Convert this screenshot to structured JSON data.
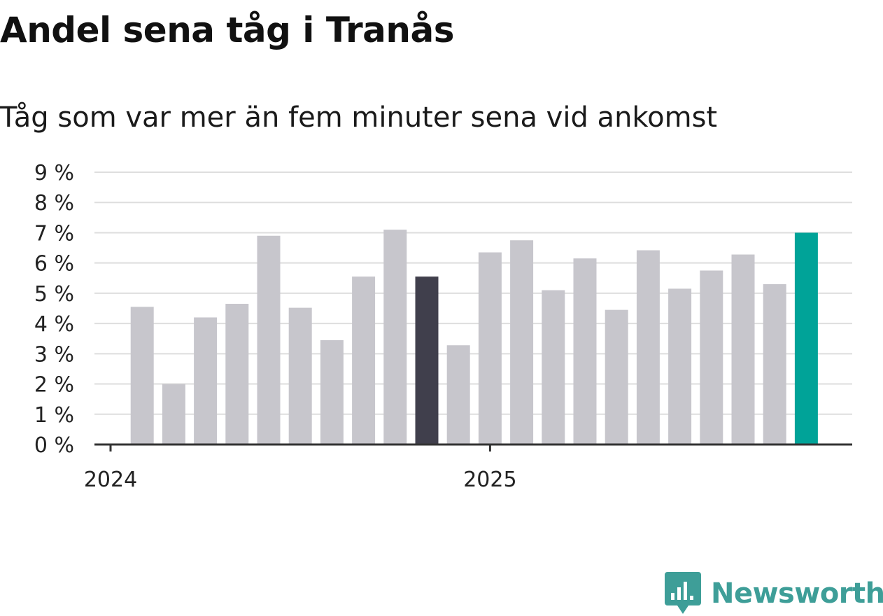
{
  "title": "Andel sena tåg i Tranås",
  "subtitle": "Tåg som var mer än fem minuter sena vid ankomst",
  "brand": {
    "name": "Newsworthy",
    "color": "#3e9e98",
    "logo_icon": "bar-chart-badge-icon"
  },
  "chart_data": {
    "type": "bar",
    "title": "Andel sena tåg i Tranås",
    "subtitle": "Tåg som var mer än fem minuter sena vid ankomst",
    "xlabel": "",
    "ylabel": "",
    "ylim": [
      0,
      9
    ],
    "y_ticks": [
      0,
      1,
      2,
      3,
      4,
      5,
      6,
      7,
      8,
      9
    ],
    "y_tick_suffix": " %",
    "grid": "horizontal",
    "legend": "none",
    "x_tick_labels": [
      "2024",
      "2025"
    ],
    "categories": [
      "2024-01",
      "2024-02",
      "2024-03",
      "2024-04",
      "2024-05",
      "2024-06",
      "2024-07",
      "2024-08",
      "2024-09",
      "2024-10",
      "2024-11",
      "2024-12",
      "2025-01",
      "2025-02",
      "2025-03",
      "2025-04",
      "2025-05",
      "2025-06",
      "2025-07",
      "2025-08",
      "2025-09",
      "2025-10",
      "2025-11",
      "2025-12"
    ],
    "values": [
      null,
      4.55,
      2.0,
      4.2,
      4.65,
      6.9,
      4.52,
      3.45,
      5.55,
      7.1,
      5.55,
      3.28,
      6.35,
      6.75,
      5.1,
      6.15,
      4.45,
      6.42,
      5.15,
      5.75,
      6.28,
      5.3,
      7.0,
      null
    ],
    "colors": {
      "default": "#c7c6cc",
      "highlight_previous_year": "#403f4c",
      "highlight_latest": "#00a398",
      "gridline": "#dedede",
      "axis": "#333333"
    },
    "highlight": {
      "previous_year": "2024-11",
      "latest": "2025-11"
    }
  }
}
